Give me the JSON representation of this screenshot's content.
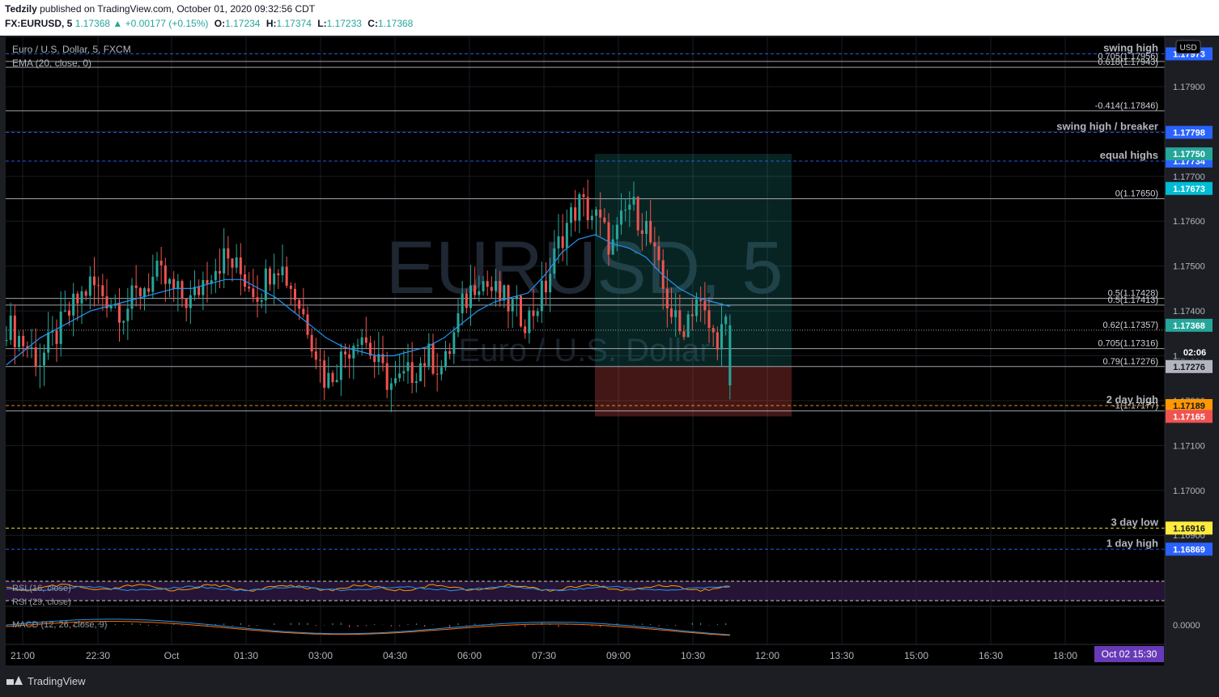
{
  "header": {
    "author": "Tedzily",
    "published": " published on TradingView.com, October 01, 2020 09:32:56 CDT",
    "symbol": "FX:EURUSD, 5",
    "last": "1.17368",
    "change": "+0.00177 (+0.15%)",
    "o_label": "O:",
    "o": "1.17234",
    "h_label": "H:",
    "h": "1.17374",
    "l_label": "L:",
    "l": "1.17233",
    "c_label": "C:",
    "c": "1.17368"
  },
  "legend": {
    "title": "Euro / U.S. Dollar, 5, FXCM",
    "ema": "EMA (20, close, 0)",
    "rsi1": "RSI (16, close)",
    "rsi2": "RSI (29, close)",
    "macd": "MACD (12, 26, close, 9)"
  },
  "watermark": {
    "big": "EURUSD, 5",
    "small": "Euro / U.S. Dollar"
  },
  "brand": "TradingView",
  "currency": "USD",
  "countdown": "02:06",
  "colors": {
    "up": "#26a69a",
    "down": "#ef5350",
    "ema": "#2196f3",
    "background": "#000000"
  },
  "chart_data": {
    "type": "candlestick",
    "symbol": "EURUSD",
    "timeframe": "5",
    "ylim": [
      1.1683,
      1.1801
    ],
    "grid": true,
    "price_ticks": [
      "1.17900",
      "1.17800",
      "1.17700",
      "1.17600",
      "1.17500",
      "1.17400",
      "1.17300",
      "1.17200",
      "1.17100",
      "1.17000",
      "1.16900"
    ],
    "time_ticks": [
      "21:00",
      "22:30",
      "Oct",
      "01:30",
      "03:00",
      "04:30",
      "06:00",
      "07:30",
      "09:00",
      "10:30",
      "12:00",
      "13:30",
      "15:00",
      "16:30",
      "18:00"
    ],
    "time_current": "Oct 02   15:30",
    "close_path": [
      1.1737,
      1.1733,
      1.1729,
      1.1735,
      1.1741,
      1.1746,
      1.1743,
      1.174,
      1.1745,
      1.1748,
      1.1744,
      1.1742,
      1.1749,
      1.1752,
      1.1748,
      1.1744,
      1.1752,
      1.1745,
      1.1736,
      1.1724,
      1.173,
      1.1736,
      1.1728,
      1.1723,
      1.1726,
      1.173,
      1.1727,
      1.174,
      1.1748,
      1.1744,
      1.1741,
      1.1738,
      1.1745,
      1.1757,
      1.1764,
      1.1761,
      1.1754,
      1.1764,
      1.1759,
      1.1745,
      1.1735,
      1.1743,
      1.1734,
      1.1737
    ],
    "ema_path": [
      1.1728,
      1.1731,
      1.1734,
      1.1736,
      1.1738,
      1.174,
      1.1741,
      1.1742,
      1.1743,
      1.1744,
      1.1745,
      1.1745,
      1.1746,
      1.1747,
      1.1747,
      1.1745,
      1.1743,
      1.174,
      1.1737,
      1.1734,
      1.1732,
      1.1731,
      1.173,
      1.173,
      1.1731,
      1.1732,
      1.1734,
      1.1737,
      1.174,
      1.1742,
      1.1743,
      1.1744,
      1.1748,
      1.1753,
      1.1756,
      1.1757,
      1.1755,
      1.1754,
      1.1752,
      1.1748,
      1.1745,
      1.1743,
      1.1742,
      1.1741
    ],
    "horizontal_levels": [
      {
        "label": "swing high",
        "price": 1.17973,
        "style": "dashed",
        "color": "#2962ff",
        "tag": "1.17973",
        "tag_color": "#2962ff"
      },
      {
        "label": "0.705(1.17956)",
        "price": 1.17956,
        "style": "solid",
        "color": "#b2b5be"
      },
      {
        "label": "0.618(1.17943)",
        "price": 1.17943,
        "style": "solid",
        "color": "#b2b5be"
      },
      {
        "label": "-0.414(1.17846)",
        "price": 1.17846,
        "style": "solid",
        "color": "#b2b5be"
      },
      {
        "label": "swing high / breaker",
        "price": 1.17798,
        "style": "dashed",
        "color": "#2962ff",
        "tag": "1.17798",
        "tag_color": "#2962ff"
      },
      {
        "label": "equal highs",
        "price": 1.17734,
        "style": "dashed",
        "color": "#2962ff",
        "tag": "1.17734",
        "tag_color": "#2962ff"
      },
      {
        "label": "0(1.17650)",
        "price": 1.1765,
        "style": "solid",
        "color": "#b2b5be",
        "tag": "1.17673",
        "tag_color": "#00bcd4"
      },
      {
        "label": "0.5(1.17428)",
        "price": 1.17428,
        "style": "solid",
        "color": "#b2b5be"
      },
      {
        "label": "0.5(1.17413)",
        "price": 1.17413,
        "style": "solid",
        "color": "#b2b5be"
      },
      {
        "label": "0.62(1.17357)",
        "price": 1.17357,
        "style": "dotted",
        "color": "#b2b5be",
        "tag": "1.17368",
        "tag_color": "#26a69a"
      },
      {
        "label": "0.705(1.17316)",
        "price": 1.17316,
        "style": "solid",
        "color": "#b2b5be"
      },
      {
        "label": "0.79(1.17276)",
        "price": 1.17276,
        "style": "solid",
        "color": "#b2b5be",
        "tag": "1.17276",
        "tag_color": "#b2b5be"
      },
      {
        "label": "2 day high",
        "price": 1.17189,
        "style": "dashed",
        "color": "#ff9800",
        "tag": "1.17189",
        "tag_color": "#ff9800"
      },
      {
        "label": "-1(1.17177)",
        "price": 1.17177,
        "style": "solid",
        "color": "#b2b5be"
      },
      {
        "label": "3 day low",
        "price": 1.16916,
        "style": "dashed",
        "color": "#ffeb3b",
        "tag": "1.16916",
        "tag_color": "#ffeb3b"
      },
      {
        "label": "1 day high",
        "price": 1.16869,
        "style": "dashed",
        "color": "#2962ff",
        "tag": "1.16869",
        "tag_color": "#2962ff"
      }
    ],
    "position_box": {
      "target": 1.1775,
      "entry": 1.17276,
      "stop": 1.17165,
      "target_tag": "1.17750",
      "stop_tag": "1.17165"
    },
    "macd_zero": "0.0000"
  }
}
